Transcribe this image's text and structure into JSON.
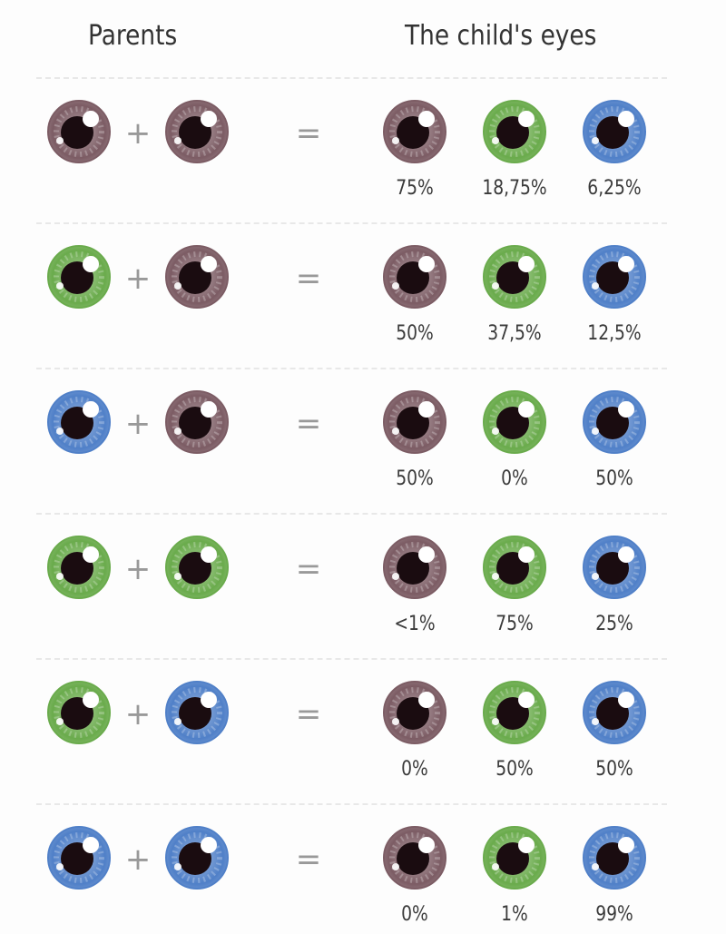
{
  "headers": {
    "parents": "Parents",
    "child": "The child's eyes"
  },
  "colors": {
    "brown": "#7c5c64",
    "green": "#6aab4c",
    "blue": "#5080c8"
  },
  "child_order": [
    "brown",
    "green",
    "blue"
  ],
  "plus_sign": "+",
  "equals_sign": "=",
  "rows": [
    {
      "parents": [
        "brown",
        "brown"
      ],
      "percentages": [
        "75%",
        "18,75%",
        "6,25%"
      ]
    },
    {
      "parents": [
        "green",
        "brown"
      ],
      "percentages": [
        "50%",
        "37,5%",
        "12,5%"
      ]
    },
    {
      "parents": [
        "blue",
        "brown"
      ],
      "percentages": [
        "50%",
        "0%",
        "50%"
      ]
    },
    {
      "parents": [
        "green",
        "green"
      ],
      "percentages": [
        "<1%",
        "75%",
        "25%"
      ]
    },
    {
      "parents": [
        "green",
        "blue"
      ],
      "percentages": [
        "0%",
        "50%",
        "50%"
      ]
    },
    {
      "parents": [
        "blue",
        "blue"
      ],
      "percentages": [
        "0%",
        "1%",
        "99%"
      ]
    }
  ]
}
